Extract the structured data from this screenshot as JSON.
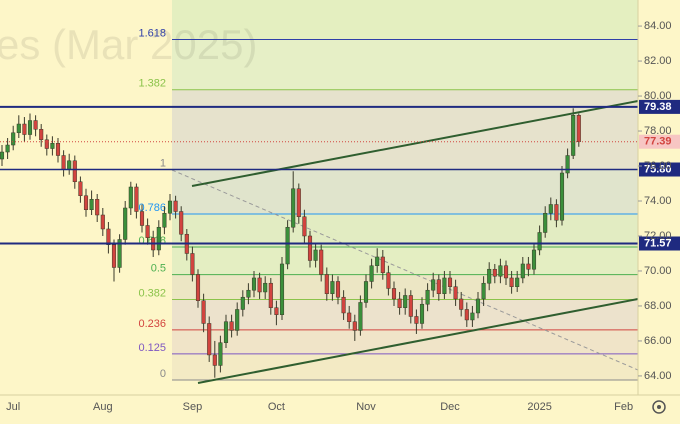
{
  "chart_data": {
    "type": "candlestick",
    "watermark": "es (Mar 2025)",
    "categories": [
      null,
      null,
      "Jul",
      null,
      null,
      null,
      null,
      null,
      null,
      null,
      null,
      null,
      null,
      null,
      null,
      null,
      null,
      null,
      "Aug",
      null,
      null,
      null,
      null,
      null,
      null,
      null,
      null,
      null,
      null,
      null,
      null,
      null,
      null,
      null,
      "Sep",
      null,
      null,
      null,
      null,
      null,
      null,
      null,
      null,
      null,
      null,
      null,
      null,
      null,
      null,
      "Oct",
      null,
      null,
      null,
      null,
      null,
      null,
      null,
      null,
      null,
      null,
      null,
      null,
      null,
      null,
      null,
      "Nov",
      null,
      null,
      null,
      null,
      null,
      null,
      null,
      null,
      null,
      null,
      null,
      null,
      null,
      null,
      "Dec",
      null,
      null,
      null,
      null,
      null,
      null,
      null,
      null,
      null,
      null,
      null,
      null,
      null,
      null,
      null,
      "2025",
      null,
      null,
      null,
      null,
      null,
      null,
      null,
      null,
      null,
      null,
      null,
      null,
      null,
      null,
      "Feb"
    ],
    "open": [
      76.4,
      76.8,
      77.2,
      77.9,
      78.4,
      77.8,
      78.6,
      78.1,
      77.5,
      77.0,
      77.3,
      76.6,
      75.8,
      76.3,
      75.1,
      74.3,
      73.5,
      74.1,
      73.2,
      72.4,
      71.5,
      70.2,
      71.8,
      73.6,
      74.8,
      73.4,
      72.6,
      71.9,
      71.2,
      72.5,
      73.3,
      74.0,
      73.4,
      72.1,
      71.0,
      69.8,
      68.3,
      67.0,
      65.2,
      64.6,
      65.9,
      67.1,
      66.6,
      67.8,
      68.5,
      68.9,
      69.6,
      68.8,
      69.3,
      67.9,
      67.5,
      70.4,
      72.5,
      74.7,
      73.1,
      72.0,
      70.6,
      71.2,
      69.8,
      68.7,
      69.4,
      68.5,
      67.6,
      67.1,
      66.6,
      68.2,
      69.4,
      70.3,
      70.8,
      69.9,
      69.0,
      68.4,
      67.9,
      68.6,
      67.4,
      67.0,
      68.1,
      68.9,
      69.5,
      68.7,
      69.6,
      69.1,
      68.4,
      67.8,
      67.2,
      67.6,
      68.4,
      69.3,
      70.1,
      69.7,
      70.3,
      69.6,
      69.1,
      69.6,
      70.4,
      70.1,
      71.2,
      72.2,
      73.3,
      73.8,
      72.9,
      75.6,
      76.6,
      78.9,
      null,
      null,
      null,
      null,
      null,
      null,
      null,
      null
    ],
    "high": [
      77.2,
      77.6,
      78.3,
      78.9,
      78.8,
      79.0,
      78.9,
      78.4,
      77.8,
      77.7,
      77.6,
      76.9,
      76.7,
      76.6,
      75.4,
      74.7,
      74.6,
      74.4,
      73.6,
      72.8,
      71.8,
      72.1,
      74.0,
      75.1,
      75.0,
      73.8,
      73.0,
      72.3,
      72.9,
      73.7,
      74.4,
      74.3,
      73.7,
      72.4,
      71.4,
      70.1,
      68.7,
      67.4,
      66.0,
      66.3,
      67.5,
      67.5,
      68.2,
      68.9,
      69.3,
      70.0,
      69.9,
      69.7,
      69.6,
      68.3,
      70.8,
      72.9,
      75.7,
      75.0,
      73.5,
      72.3,
      71.6,
      71.5,
      70.2,
      69.8,
      69.7,
      68.9,
      68.0,
      67.5,
      68.6,
      69.8,
      70.7,
      71.3,
      71.2,
      70.3,
      69.4,
      68.8,
      69.0,
      68.9,
      67.8,
      68.5,
      69.3,
      69.9,
      69.8,
      70.0,
      70.0,
      69.5,
      68.8,
      68.2,
      68.0,
      68.8,
      69.7,
      70.5,
      70.4,
      70.7,
      70.6,
      70.0,
      70.0,
      70.8,
      70.8,
      71.6,
      72.6,
      73.7,
      74.2,
      74.1,
      76.0,
      77.0,
      79.3,
      79.0,
      null,
      null,
      null,
      null,
      null,
      null,
      null,
      null
    ],
    "low": [
      76.0,
      76.4,
      76.9,
      77.6,
      77.4,
      77.5,
      77.7,
      77.1,
      76.6,
      76.6,
      76.2,
      75.4,
      75.5,
      74.7,
      73.9,
      73.1,
      73.2,
      72.8,
      72.0,
      71.0,
      69.4,
      69.9,
      71.5,
      73.2,
      73.0,
      72.2,
      71.5,
      70.8,
      70.9,
      72.1,
      72.9,
      73.0,
      71.7,
      70.6,
      69.4,
      67.9,
      66.5,
      64.8,
      63.9,
      64.2,
      65.6,
      66.2,
      66.3,
      67.4,
      68.1,
      68.5,
      68.4,
      68.4,
      67.5,
      66.9,
      67.2,
      70.1,
      72.2,
      72.7,
      71.6,
      70.2,
      70.2,
      69.4,
      68.3,
      68.3,
      68.1,
      67.2,
      66.7,
      66.0,
      66.3,
      67.9,
      69.0,
      69.9,
      69.5,
      68.6,
      68.0,
      67.5,
      67.5,
      67.0,
      66.4,
      66.7,
      67.7,
      68.5,
      68.3,
      68.4,
      68.7,
      68.0,
      67.4,
      66.8,
      66.8,
      67.3,
      68.0,
      68.9,
      69.3,
      69.3,
      69.2,
      68.7,
      68.8,
      69.3,
      69.7,
      69.8,
      70.9,
      71.9,
      72.9,
      72.5,
      72.6,
      75.3,
      76.4,
      77.1,
      null,
      null,
      null,
      null,
      null,
      null,
      null,
      null
    ],
    "close": [
      76.8,
      77.2,
      77.9,
      78.4,
      77.8,
      78.6,
      78.1,
      77.5,
      77.0,
      77.3,
      76.6,
      75.8,
      76.3,
      75.1,
      74.3,
      73.5,
      74.1,
      73.2,
      72.4,
      71.5,
      70.2,
      71.8,
      73.6,
      74.8,
      73.4,
      72.6,
      71.9,
      71.2,
      72.5,
      73.3,
      74.0,
      73.4,
      72.1,
      71.0,
      69.8,
      68.3,
      67.0,
      65.2,
      64.6,
      65.9,
      67.1,
      66.6,
      67.8,
      68.5,
      68.9,
      69.6,
      68.8,
      69.3,
      67.9,
      67.5,
      70.4,
      72.5,
      74.7,
      73.1,
      72.0,
      70.6,
      71.2,
      69.8,
      68.7,
      69.4,
      68.5,
      67.6,
      67.1,
      66.6,
      68.2,
      69.4,
      70.3,
      70.8,
      69.9,
      69.0,
      68.4,
      67.9,
      68.6,
      67.4,
      67.0,
      68.1,
      68.9,
      69.5,
      68.7,
      69.6,
      69.1,
      68.4,
      67.8,
      67.2,
      67.6,
      68.4,
      69.3,
      70.1,
      69.7,
      70.3,
      69.6,
      69.1,
      69.6,
      70.4,
      70.1,
      71.2,
      72.2,
      73.3,
      73.8,
      72.9,
      75.6,
      76.6,
      78.9,
      77.39,
      null,
      null,
      null,
      null,
      null,
      null,
      null,
      null
    ],
    "up_color": "#3b8f3b",
    "down_color": "#d2443f",
    "ylim": [
      62.91,
      85.49
    ],
    "yticks": [
      {
        "value": 64,
        "label": "64.00"
      },
      {
        "value": 66,
        "label": "66.00"
      },
      {
        "value": 68,
        "label": "68.00"
      },
      {
        "value": 70,
        "label": "70.00"
      },
      {
        "value": 72,
        "label": "72.00"
      },
      {
        "value": 74,
        "label": "74.00"
      },
      {
        "value": 76,
        "label": "76.00"
      },
      {
        "value": 78,
        "label": "78.00"
      },
      {
        "value": 80,
        "label": "80.00"
      },
      {
        "value": 82,
        "label": "82.00"
      },
      {
        "value": 84,
        "label": "84.00"
      }
    ],
    "fib_levels": [
      {
        "level": 1.618,
        "price": 83.23,
        "color": "#2f3fa8",
        "fill": "#e4efc0"
      },
      {
        "level": 1.382,
        "price": 80.36,
        "color": "#8bc34a",
        "fill": "#e6efc6"
      },
      {
        "level": 1,
        "price": 75.8,
        "color": "#8a8a8a",
        "fill": "#e6e2cc"
      },
      {
        "level": 0.786,
        "price": 73.26,
        "color": "#2196f3",
        "fill": "#e0e4cc"
      },
      {
        "level": 0.618,
        "price": 71.37,
        "color": "#4caf50",
        "fill": "#e2ecc2"
      },
      {
        "level": 0.5,
        "price": 69.79,
        "color": "#4caf50",
        "fill": "#e4eec2"
      },
      {
        "level": 0.382,
        "price": 68.37,
        "color": "#8bc34a",
        "fill": "#ece6c4"
      },
      {
        "level": 0.236,
        "price": 66.63,
        "color": "#d2443f",
        "fill": "#ece2cc"
      },
      {
        "level": 0.125,
        "price": 65.26,
        "color": "#7e57c2",
        "fill": "#f0e4c8"
      },
      {
        "level": 0,
        "price": 63.77,
        "color": "#8a8a8a",
        "fill": "#f3eac4"
      }
    ],
    "levels": [
      79.38,
      {
        "value": 75.8,
        "label": "75.80"
      },
      71.57
    ],
    "level_color": "#1f2a80",
    "last_price_color": "#d2443f"
  }
}
